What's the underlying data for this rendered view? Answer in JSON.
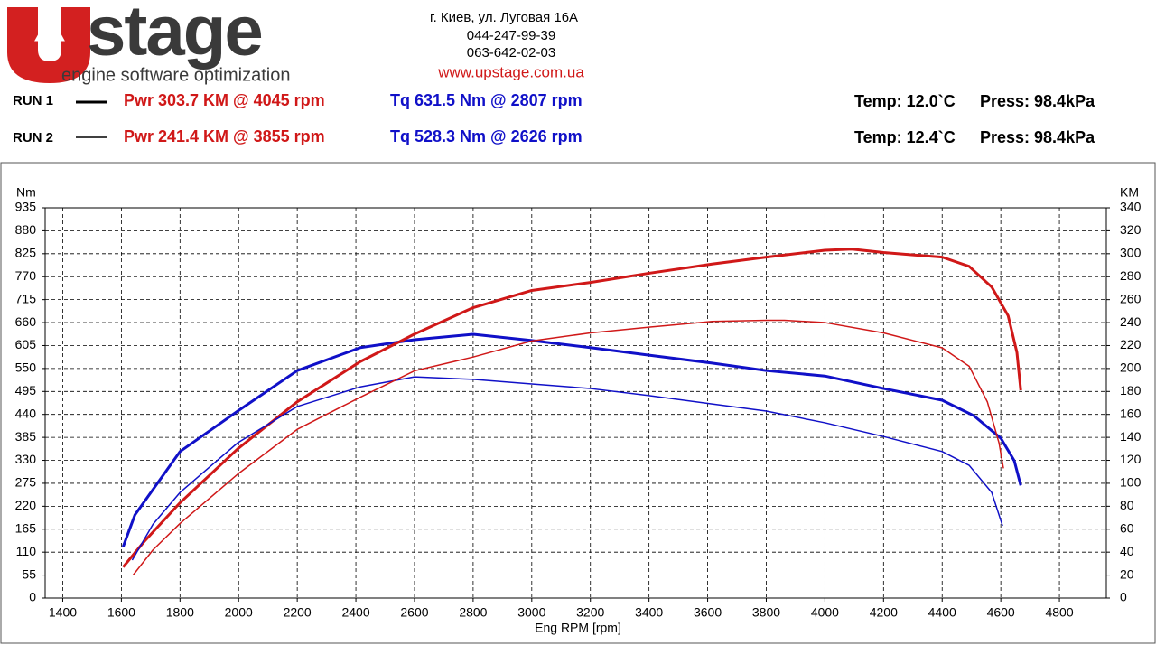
{
  "header": {
    "logo": "stage",
    "slogan": "engine software optimization",
    "address": "г. Киев, ул. Луговая 16А",
    "phones": [
      "044-247-99-39",
      "063-642-02-03"
    ],
    "website": "www.upstage.com.ua",
    "runs": [
      {
        "label": "RUN 1",
        "pwr": "Pwr  303.7 KM @ 4045 rpm",
        "tq": "Tq 631.5 Nm @ 2807 rpm",
        "temp": "Temp: 12.0`C",
        "press": "Press: 98.4kPa"
      },
      {
        "label": "RUN 2",
        "pwr": "Pwr  241.4 KM @ 3855 rpm",
        "tq": "Tq 528.3 Nm @ 2626 rpm",
        "temp": "Temp: 12.4`C",
        "press": "Press: 98.4kPa"
      }
    ]
  },
  "chart_data": {
    "type": "line",
    "xlabel": "Eng RPM [rpm]",
    "ylabel": "Nm",
    "y2label": "KM",
    "xlim": [
      1340,
      4960
    ],
    "xticks": [
      1400,
      1600,
      1800,
      2000,
      2200,
      2400,
      2600,
      2800,
      3000,
      3200,
      3400,
      3600,
      3800,
      4000,
      4200,
      4400,
      4600,
      4800
    ],
    "ylim": [
      0,
      935
    ],
    "yticks": [
      0,
      55,
      110,
      165,
      220,
      275,
      330,
      385,
      440,
      495,
      550,
      605,
      660,
      715,
      770,
      825,
      880,
      935
    ],
    "y2lim": [
      0,
      340
    ],
    "y2ticks": [
      0,
      20,
      40,
      60,
      80,
      100,
      120,
      140,
      160,
      180,
      200,
      220,
      240,
      260,
      280,
      300,
      320,
      340
    ],
    "grid": true,
    "series": [
      {
        "color": "#1010c8",
        "width": 3,
        "axis": "y",
        "x": [
          1606,
          1646,
          1800,
          1997,
          2200,
          2415,
          2600,
          2800,
          3000,
          3200,
          3400,
          3615,
          3800,
          4000,
          4200,
          4400,
          4508,
          4600,
          4646,
          4668
        ],
        "values": [
          123,
          199,
          351,
          448,
          545,
          600,
          619,
          632,
          617,
          600,
          582,
          563,
          545,
          532,
          502,
          474,
          437,
          383,
          329,
          270
        ]
      },
      {
        "color": "#d01818",
        "width": 3,
        "axis": "y2",
        "x": [
          1606,
          1677,
          1800,
          1997,
          2200,
          2415,
          2600,
          2800,
          3000,
          3200,
          3400,
          3615,
          3800,
          4000,
          4092,
          4200,
          4400,
          4492,
          4569,
          4625,
          4655,
          4668
        ],
        "values": [
          27,
          49,
          83,
          130,
          171,
          206,
          230,
          253,
          268,
          275,
          283,
          291,
          297,
          303,
          304,
          301,
          297,
          289,
          271,
          246,
          214,
          181
        ]
      },
      {
        "color": "#1010c8",
        "width": 1.5,
        "axis": "y",
        "x": [
          1637,
          1708,
          1800,
          1997,
          2200,
          2415,
          2600,
          2800,
          3000,
          3200,
          3400,
          3615,
          3800,
          4000,
          4200,
          4400,
          4492,
          4569,
          4606
        ],
        "values": [
          91,
          177,
          253,
          372,
          459,
          506,
          530,
          524,
          513,
          502,
          485,
          465,
          448,
          420,
          387,
          351,
          318,
          253,
          173
        ]
      },
      {
        "color": "#d01818",
        "width": 1.5,
        "axis": "y2",
        "x": [
          1640,
          1708,
          1800,
          1997,
          2200,
          2415,
          2600,
          2800,
          3000,
          3200,
          3400,
          3615,
          3800,
          3862,
          4000,
          4200,
          4400,
          4492,
          4554,
          4594,
          4609
        ],
        "values": [
          20,
          42,
          65,
          108,
          147,
          175,
          198,
          210,
          224,
          231,
          236,
          241,
          242,
          242,
          240,
          231,
          218,
          202,
          171,
          135,
          113
        ]
      }
    ]
  }
}
